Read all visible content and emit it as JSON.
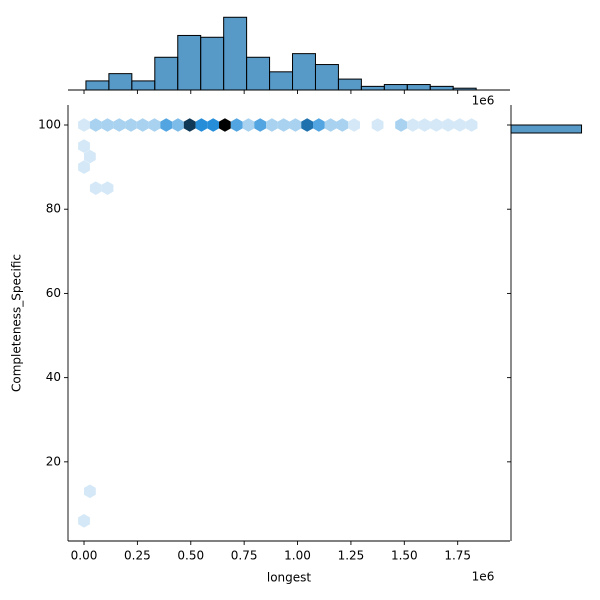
{
  "chart_data": {
    "type": "hexbin",
    "xlabel": "longest",
    "ylabel": "Completeness_Specific",
    "offset_text": "1e6",
    "color": "#1f77b4",
    "xlim": [
      -75000,
      1995000
    ],
    "ylim": [
      1.2,
      104.75
    ],
    "xticks": [
      {
        "value": 0,
        "label": "0.00"
      },
      {
        "value": 250000,
        "label": "0.25"
      },
      {
        "value": 500000,
        "label": "0.50"
      },
      {
        "value": 750000,
        "label": "0.75"
      },
      {
        "value": 1000000,
        "label": "1.00"
      },
      {
        "value": 1250000,
        "label": "1.25"
      },
      {
        "value": 1500000,
        "label": "1.50"
      },
      {
        "value": 1750000,
        "label": "1.75"
      }
    ],
    "yticks": [
      20,
      40,
      60,
      80,
      100
    ],
    "x": [
      0,
      55000,
      110000,
      165000,
      220000,
      275000,
      330000,
      385000,
      440000,
      495000,
      550000,
      605000,
      660000,
      715000,
      770000,
      825000,
      880000,
      935000,
      990000,
      1045000,
      1100000,
      1155000,
      1210000,
      1265000,
      1375000,
      1485000,
      1540000,
      1595000,
      1650000,
      1705000,
      1760000,
      1815000,
      0,
      0,
      27500,
      55000,
      110000,
      27500,
      0
    ],
    "y": [
      100,
      100,
      100,
      100,
      100,
      100,
      100,
      100,
      100,
      100,
      100,
      100,
      100,
      100,
      100,
      100,
      100,
      100,
      100,
      100,
      100,
      100,
      100,
      100,
      100,
      100,
      100,
      100,
      100,
      100,
      100,
      100,
      95,
      90,
      92.5,
      85,
      85,
      13,
      6
    ],
    "counts": [
      1,
      2,
      2,
      2,
      2,
      2,
      2,
      4,
      3,
      8,
      5,
      5,
      10,
      4,
      2,
      4,
      2,
      2,
      2,
      6,
      4,
      2,
      2,
      1,
      1,
      2,
      1,
      1,
      1,
      1,
      1,
      1,
      1,
      1,
      1,
      1,
      1,
      1,
      1
    ],
    "marginal_x": {
      "type": "histogram",
      "bins": [
        9000,
        116500,
        224000,
        331500,
        439000,
        546500,
        654000,
        761500,
        869000,
        976500,
        1084000,
        1191500,
        1299000,
        1406500,
        1514000,
        1621500,
        1729000,
        1836500
      ],
      "counts": [
        5,
        9,
        5,
        18,
        30,
        29,
        40,
        18,
        10,
        20,
        14,
        6,
        2,
        3,
        3,
        2,
        1
      ],
      "ylim": [
        0,
        44
      ]
    },
    "marginal_y": {
      "type": "histogram",
      "bins": [
        98.1,
        100
      ],
      "counts": [
        250
      ],
      "xlim": [
        0,
        280
      ]
    }
  }
}
